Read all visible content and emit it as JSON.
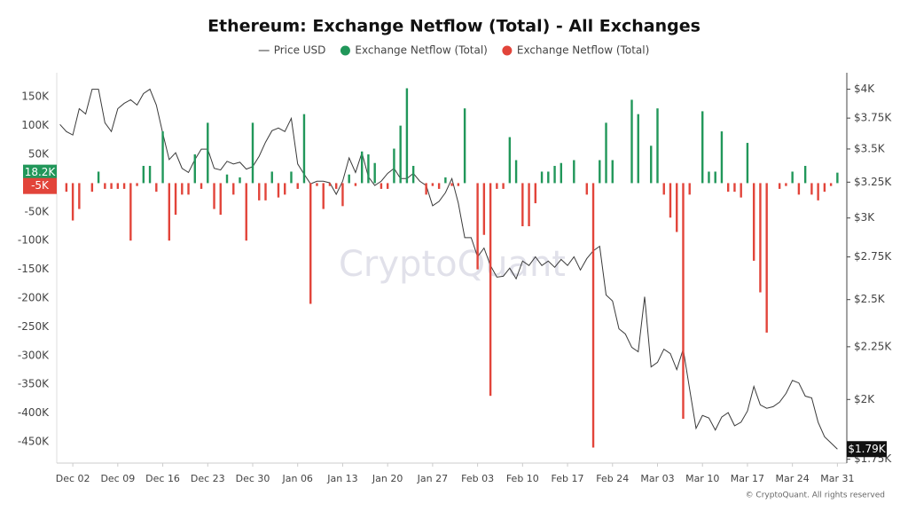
{
  "chart_data": {
    "type": "bar",
    "title": "Ethereum: Exchange Netflow (Total) - All Exchanges",
    "watermark": "CryptoQuant",
    "footer": "© CryptoQuant. All rights reserved",
    "categories": [
      null,
      null,
      "Dec 02",
      null,
      null,
      null,
      null,
      null,
      null,
      "Dec 09",
      null,
      null,
      null,
      null,
      null,
      null,
      "Dec 16",
      null,
      null,
      null,
      null,
      null,
      null,
      "Dec 23",
      null,
      null,
      null,
      null,
      null,
      null,
      "Dec 30",
      null,
      null,
      null,
      null,
      null,
      null,
      "Jan 06",
      null,
      null,
      null,
      null,
      null,
      null,
      "Jan 13",
      null,
      null,
      null,
      null,
      null,
      null,
      "Jan 20",
      null,
      null,
      null,
      null,
      null,
      null,
      "Jan 27",
      null,
      null,
      null,
      null,
      null,
      null,
      "Feb 03",
      null,
      null,
      null,
      null,
      null,
      null,
      "Feb 10",
      null,
      null,
      null,
      null,
      null,
      null,
      "Feb 17",
      null,
      null,
      null,
      null,
      null,
      null,
      "Feb 24",
      null,
      null,
      null,
      null,
      null,
      null,
      "Mar 03",
      null,
      null,
      null,
      null,
      null,
      null,
      "Mar 10",
      null,
      null,
      null,
      null,
      null,
      null,
      "Mar 17",
      null,
      null,
      null,
      null,
      null,
      null,
      "Mar 24",
      null,
      null,
      null,
      null,
      null,
      null,
      "Mar 31"
    ],
    "series": [
      {
        "name": "Price USD",
        "type": "line",
        "axis": "y2",
        "color": "#3a3a3a",
        "last_value_label": "$1.79K",
        "values": [
          3697,
          3639,
          3611,
          3830,
          3785,
          4000,
          4000,
          3711,
          3639,
          3830,
          3876,
          3907,
          3861,
          3961,
          4000,
          3861,
          3625,
          3418,
          3471,
          3352,
          3321,
          3418,
          3499,
          3499,
          3352,
          3340,
          3405,
          3385,
          3398,
          3346,
          3365,
          3444,
          3554,
          3646,
          3668,
          3639,
          3748,
          3385,
          3308,
          3238,
          3257,
          3257,
          3245,
          3163,
          3257,
          3431,
          3321,
          3471,
          3289,
          3226,
          3257,
          3314,
          3352,
          3276,
          3276,
          3314,
          3257,
          3226,
          3083,
          3113,
          3175,
          3276,
          3101,
          2871,
          2871,
          2751,
          2805,
          2698,
          2629,
          2634,
          2682,
          2619,
          2725,
          2698,
          2751,
          2698,
          2725,
          2687,
          2735,
          2698,
          2751,
          2671,
          2740,
          2788,
          2816,
          2526,
          2492,
          2342,
          2315,
          2247,
          2225,
          2516,
          2151,
          2173,
          2238,
          2216,
          2138,
          2238,
          2047,
          1875,
          1930,
          1919,
          1868,
          1923,
          1942,
          1886,
          1901,
          1949,
          2059,
          1976,
          1961,
          1968,
          1988,
          2027,
          2087,
          2075,
          2015,
          2007,
          1901,
          1840,
          1815,
          1790
        ]
      },
      {
        "name": "Exchange Netflow (Total)",
        "color": "#21975a",
        "last_value_label": "18.2K",
        "values": [
          null,
          null,
          null,
          null,
          null,
          null,
          20000,
          null,
          null,
          null,
          null,
          null,
          null,
          30000,
          30000,
          null,
          90000,
          null,
          null,
          null,
          null,
          50000,
          null,
          105000,
          null,
          null,
          15000,
          null,
          10000,
          null,
          105000,
          null,
          null,
          20000,
          null,
          null,
          20000,
          null,
          120000,
          null,
          null,
          null,
          null,
          null,
          null,
          15000,
          null,
          55000,
          50000,
          35000,
          null,
          null,
          60000,
          100000,
          165000,
          30000,
          null,
          null,
          null,
          null,
          10000,
          null,
          null,
          130000,
          null,
          null,
          null,
          null,
          null,
          null,
          80000,
          40000,
          null,
          null,
          null,
          20000,
          20000,
          30000,
          35000,
          null,
          40000,
          null,
          null,
          null,
          40000,
          105000,
          40000,
          null,
          null,
          145000,
          120000,
          null,
          65000,
          130000,
          null,
          null,
          null,
          null,
          null,
          null,
          125000,
          20000,
          20000,
          90000,
          null,
          null,
          null,
          70000,
          null,
          null,
          null,
          null,
          null,
          null,
          20000,
          null,
          30000,
          null,
          null,
          null,
          null,
          18200
        ]
      },
      {
        "name": "Exchange Netflow (Total)",
        "color": "#e2443a",
        "last_value_label": "-5K",
        "values": [
          null,
          -15000,
          -65000,
          -45000,
          null,
          -15000,
          null,
          -10000,
          -10000,
          -10000,
          -10000,
          -100000,
          -5000,
          null,
          null,
          -15000,
          null,
          -100000,
          -55000,
          -20000,
          -20000,
          null,
          -10000,
          null,
          -45000,
          -55000,
          null,
          -20000,
          null,
          -100000,
          null,
          -30000,
          -30000,
          null,
          -25000,
          -20000,
          null,
          -10000,
          null,
          -210000,
          -5000,
          -45000,
          -5000,
          -10000,
          -40000,
          null,
          -5000,
          null,
          null,
          null,
          -10000,
          -10000,
          null,
          null,
          null,
          null,
          null,
          -20000,
          -5000,
          -10000,
          null,
          -5000,
          -5000,
          null,
          null,
          -150000,
          -90000,
          -370000,
          -10000,
          -10000,
          null,
          null,
          -75000,
          -75000,
          -35000,
          null,
          null,
          null,
          null,
          null,
          null,
          null,
          -20000,
          -460000,
          null,
          null,
          null,
          null,
          null,
          null,
          null,
          null,
          null,
          null,
          -20000,
          -60000,
          -85000,
          -410000,
          -20000,
          null,
          null,
          null,
          null,
          null,
          -15000,
          -15000,
          -25000,
          null,
          -135000,
          -190000,
          -260000,
          null,
          -10000,
          -5000,
          null,
          -20000,
          null,
          -20000,
          -30000,
          -15000,
          -5000,
          null
        ]
      }
    ],
    "ylim": [
      -487000,
      192000
    ],
    "yticks": [
      {
        "value": 150000,
        "label": "150K"
      },
      {
        "value": 100000,
        "label": "100K"
      },
      {
        "value": 50000,
        "label": "50K"
      },
      {
        "value": -50000,
        "label": "-50K"
      },
      {
        "value": -100000,
        "label": "-100K"
      },
      {
        "value": -150000,
        "label": "-150K"
      },
      {
        "value": -200000,
        "label": "-200K"
      },
      {
        "value": -250000,
        "label": "-250K"
      },
      {
        "value": -300000,
        "label": "-300K"
      },
      {
        "value": -350000,
        "label": "-350K"
      },
      {
        "value": -400000,
        "label": "-400K"
      },
      {
        "value": -450000,
        "label": "-450K"
      }
    ],
    "y2lim": [
      1735,
      4150
    ],
    "y2log": true,
    "y2ticks": [
      {
        "value": 4000,
        "label": "$4K"
      },
      {
        "value": 3750,
        "label": "$3.75K"
      },
      {
        "value": 3500,
        "label": "$3.5K"
      },
      {
        "value": 3250,
        "label": "$3.25K"
      },
      {
        "value": 3000,
        "label": "$3K"
      },
      {
        "value": 2750,
        "label": "$2.75K"
      },
      {
        "value": 2500,
        "label": "$2.5K"
      },
      {
        "value": 2250,
        "label": "$2.25K"
      },
      {
        "value": 2000,
        "label": "$2K"
      },
      {
        "value": 1750,
        "label": "$1.75K"
      }
    ],
    "grid": false
  }
}
